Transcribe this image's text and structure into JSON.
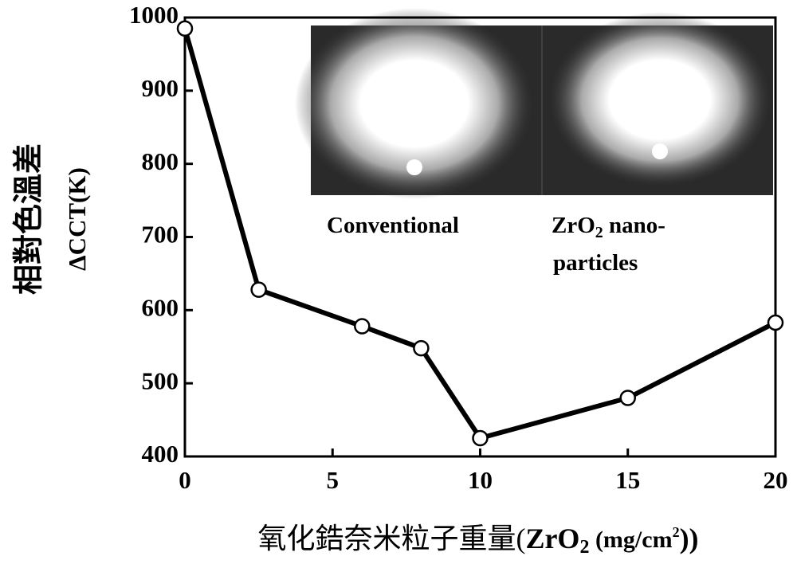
{
  "chart_data": {
    "type": "line",
    "y_label_cn": "相對色溫差",
    "y_label": "ΔCCT(K)",
    "x_label_parts": [
      "氧化鋯奈米粒子重量(",
      "ZrO",
      "2",
      " (mg/cm",
      "2",
      "))"
    ],
    "inset_labels": [
      [
        "Conventional"
      ],
      [
        "ZrO",
        "2",
        " nano-"
      ],
      [
        "particles"
      ]
    ],
    "x": [
      0,
      2.5,
      6,
      8,
      10,
      15,
      20
    ],
    "values": [
      985,
      628,
      578,
      548,
      425,
      480,
      583
    ],
    "color": "#000000",
    "xlim": [
      0,
      20
    ],
    "xticks": [
      0,
      5,
      10,
      15,
      20
    ],
    "ylim": [
      400,
      1000
    ],
    "yticks": [
      400,
      500,
      600,
      700,
      800,
      900,
      1000
    ]
  }
}
